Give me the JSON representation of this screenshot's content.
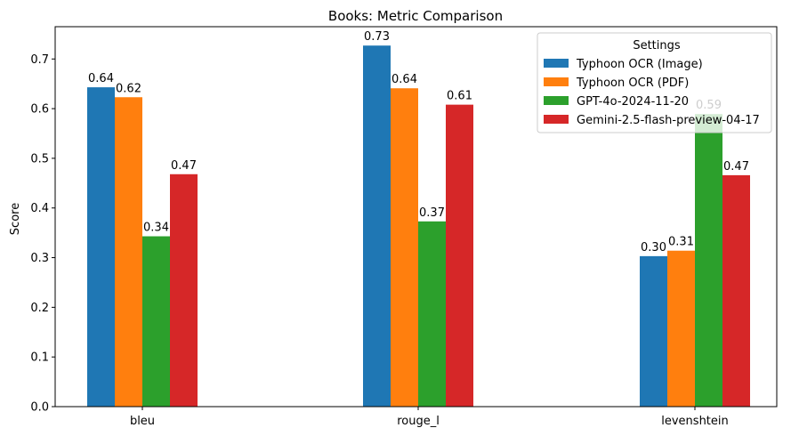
{
  "chart_data": {
    "type": "bar",
    "title": "Books: Metric Comparison",
    "xlabel": "",
    "ylabel": "Score",
    "ylim": [
      0,
      0.765
    ],
    "yticks": [
      0.0,
      0.1,
      0.2,
      0.3,
      0.4,
      0.5,
      0.6,
      0.7
    ],
    "ytick_labels": [
      "0.0",
      "0.1",
      "0.2",
      "0.3",
      "0.4",
      "0.5",
      "0.6",
      "0.7"
    ],
    "categories": [
      "bleu",
      "rouge_l",
      "levenshtein"
    ],
    "legend_title": "Settings",
    "legend_position": "top-right",
    "series": [
      {
        "name": "Typhoon OCR (Image)",
        "color": "#1f77b4",
        "values": [
          0.643,
          0.727,
          0.303
        ],
        "labels": [
          "0.64",
          "0.73",
          "0.30"
        ]
      },
      {
        "name": "Typhoon OCR (PDF)",
        "color": "#ff7f0e",
        "values": [
          0.623,
          0.641,
          0.314
        ],
        "labels": [
          "0.62",
          "0.64",
          "0.31"
        ]
      },
      {
        "name": "GPT-4o-2024-11-20",
        "color": "#2ca02c",
        "values": [
          0.343,
          0.373,
          0.589
        ],
        "labels": [
          "0.34",
          "0.37",
          "0.59"
        ]
      },
      {
        "name": "Gemini-2.5-flash-preview-04-17",
        "color": "#d62728",
        "values": [
          0.468,
          0.608,
          0.466
        ],
        "labels": [
          "0.47",
          "0.61",
          "0.47"
        ]
      }
    ]
  }
}
